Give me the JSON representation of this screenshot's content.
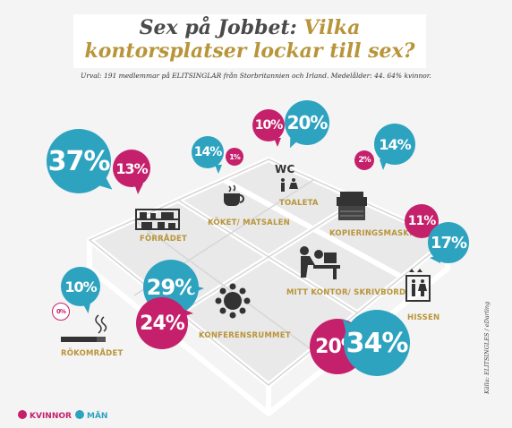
{
  "colors": {
    "women": "#c5206b",
    "men": "#2ea3c0",
    "gold": "#b8953a"
  },
  "title": {
    "line1": "Sex på Jobbet:",
    "line1b": "Vilka",
    "line2": "kontorsplatser lockar till sex?"
  },
  "subtitle": "Urval: 191 medlemmar på ELITSINGLAR  från Storbritannien och Irland. Medelålder: 44. 64% kvinnor.",
  "locations": {
    "forradet": {
      "label": "FÖRRÅDET",
      "women": "13%",
      "men": "37%"
    },
    "koket": {
      "label": "KÖKET/ MATSALEN",
      "women": "1%",
      "men": "14%"
    },
    "toaleta": {
      "label": "TOALETA",
      "women": "10%",
      "men": "20%",
      "wc": "WC"
    },
    "kopiering": {
      "label": "KOPIERINGSMASKINEN",
      "women": "2%",
      "men": "14%"
    },
    "hissen": {
      "label": "HISSEN",
      "women": "11%",
      "men": "17%"
    },
    "mitt_kontor": {
      "label": "MITT KONTOR/ SKRIVBORD",
      "women": "20%",
      "men": "34%"
    },
    "konferens": {
      "label": "KONFERENSRUMMET",
      "women": "24%",
      "men": "29%"
    },
    "rokomradet": {
      "label": "RÖKOMRÅDET",
      "women": "0%",
      "men": "10%"
    }
  },
  "legend": {
    "women": "KVINNOR",
    "men": "MÄN"
  },
  "source": "Källa: ELITSINGLES / eDarling"
}
